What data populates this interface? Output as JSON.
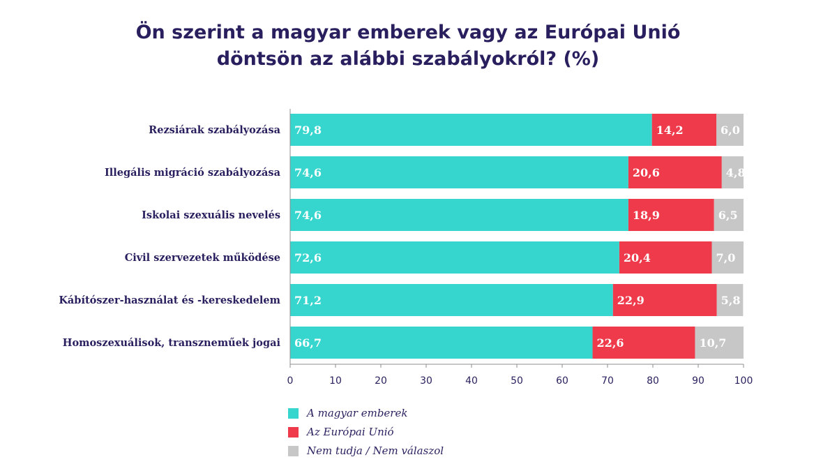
{
  "chart_data": {
    "type": "bar",
    "orientation": "horizontal",
    "stacked": true,
    "title_lines": [
      "Ön szerint a magyar emberek vagy az Európai Unió",
      "döntsön az alábbi szabályokról? (%)"
    ],
    "categories": [
      "Rezsiárak szabályozása",
      "Illegális migráció szabályozása",
      "Iskolai szexuális nevelés",
      "Civil szervezetek működése",
      "Kábítószer-használat és -kereskedelem",
      "Homoszexuálisok, transzneműek jogai"
    ],
    "series": [
      {
        "name": "A magyar emberek",
        "color": "#36d6cf",
        "values": [
          79.8,
          74.6,
          74.6,
          72.6,
          71.2,
          66.7
        ],
        "labels": [
          "79,8",
          "74,6",
          "74,6",
          "72,6",
          "71,2",
          "66,7"
        ]
      },
      {
        "name": "Az Európai Unió",
        "color": "#ee3a4a",
        "values": [
          14.2,
          20.6,
          18.9,
          20.4,
          22.9,
          22.6
        ],
        "labels": [
          "14,2",
          "20,6",
          "18,9",
          "20,4",
          "22,9",
          "22,6"
        ]
      },
      {
        "name": "Nem tudja / Nem válaszol",
        "color": "#c7c7c7",
        "values": [
          6.0,
          4.8,
          6.5,
          7.0,
          5.8,
          10.7
        ],
        "labels": [
          "6,0",
          "4,8",
          "6,5",
          "7,0",
          "5,8",
          "10,7"
        ]
      }
    ],
    "xlim": [
      0,
      100
    ],
    "xticks": [
      0,
      10,
      20,
      30,
      40,
      50,
      60,
      70,
      80,
      90,
      100
    ],
    "xlabel": "",
    "ylabel": "",
    "grid": false,
    "legend_position": "bottom-left"
  }
}
